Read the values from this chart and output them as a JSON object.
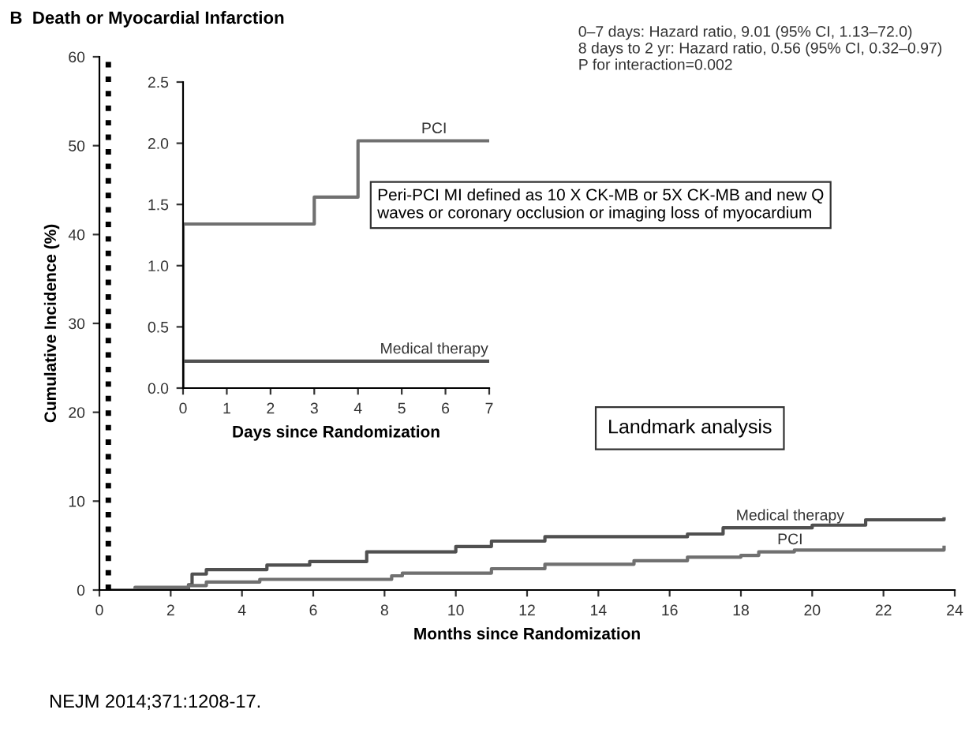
{
  "chart_data": [
    {
      "type": "step",
      "title": "B  Death or Myocardial Infarction",
      "xlabel": "Months since Randomization",
      "ylabel": "Cumulative Incidence (%)",
      "xlim": [
        0,
        24
      ],
      "xticks": [
        0,
        2,
        4,
        6,
        8,
        10,
        12,
        14,
        16,
        18,
        20,
        22,
        24
      ],
      "ylim": [
        0,
        60
      ],
      "yticks": [
        0,
        10,
        20,
        30,
        40,
        50,
        60
      ],
      "grid": false,
      "legend": false,
      "series": [
        {
          "name": "Medical therapy",
          "color": "#505050",
          "x": [
            0.3,
            2.5,
            2.6,
            3,
            4.7,
            5.9,
            7.5,
            10,
            11,
            12.5,
            16.5,
            17.5,
            20,
            21.5,
            23.7
          ],
          "values": [
            0,
            0.6,
            1.8,
            2.3,
            2.8,
            3.2,
            4.3,
            4.9,
            5.5,
            6.0,
            6.3,
            7.0,
            7.3,
            7.9,
            8.0
          ]
        },
        {
          "name": "PCI",
          "color": "#707070",
          "x": [
            0.3,
            1,
            2.5,
            3,
            4.5,
            8.2,
            8.5,
            11,
            12.5,
            15,
            16.5,
            18,
            18.5,
            19.5,
            23,
            23.7
          ],
          "values": [
            0,
            0.3,
            0.5,
            0.9,
            1.2,
            1.6,
            1.9,
            2.4,
            2.9,
            3.3,
            3.7,
            3.9,
            4.3,
            4.5,
            4.5,
            4.8
          ]
        }
      ],
      "ref_lines": [
        {
          "axis": "x",
          "value": 0.25,
          "color": "#000000",
          "line_style": "dotted"
        }
      ],
      "annotations": [
        "0–7 days: Hazard ratio, 9.01 (95% CI, 1.13–72.0)\n8 days to 2 yr: Hazard ratio, 0.56 (95% CI, 0.32–0.97)\nP for interaction=0.002",
        "Peri-PCI MI defined as 10 X CK-MB or 5X CK-MB and new Q\nwaves or coronary occlusion or imaging loss of myocardium",
        "Landmark analysis",
        "NEJM 2014;371:1208-17."
      ]
    },
    {
      "type": "step",
      "xlabel": "Days since Randomization",
      "xlim": [
        0,
        7
      ],
      "xticks": [
        0,
        1,
        2,
        3,
        4,
        5,
        6,
        7
      ],
      "ylim": [
        0,
        2.5
      ],
      "yticks": [
        {
          "value": 0,
          "label": "0.0"
        },
        0.5,
        {
          "value": 1,
          "label": "1.0"
        },
        1.5,
        {
          "value": 2,
          "label": "2.0"
        },
        2.5
      ],
      "grid": false,
      "legend": false,
      "series": [
        {
          "name": "PCI",
          "color": "#707070",
          "x": [
            0,
            0,
            3,
            4,
            7
          ],
          "values": [
            0,
            1.34,
            1.56,
            2.02,
            2.02
          ]
        },
        {
          "name": "Medical therapy",
          "color": "#505050",
          "x": [
            0,
            7
          ],
          "values": [
            0.22,
            0.22
          ]
        }
      ]
    }
  ]
}
